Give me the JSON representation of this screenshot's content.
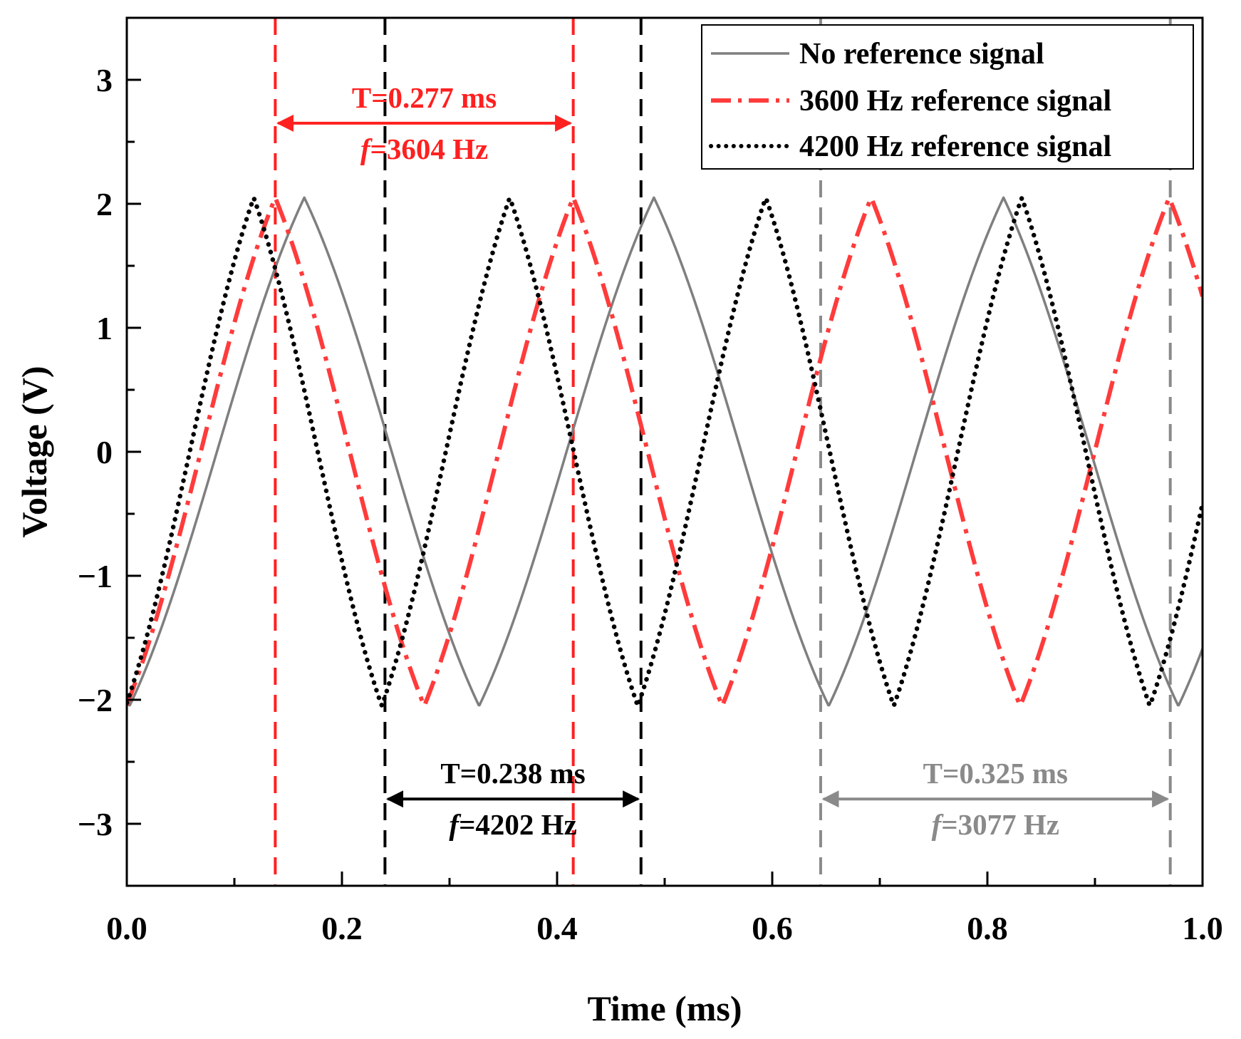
{
  "chart_data": {
    "type": "line",
    "xlabel": "Time (ms)",
    "ylabel": "Voltage (V)",
    "xlim": [
      0.0,
      1.0
    ],
    "ylim": [
      -3.5,
      3.5
    ],
    "xticks": [
      "0.0",
      "0.2",
      "0.4",
      "0.6",
      "0.8",
      "1.0"
    ],
    "yticks": [
      "3",
      "2",
      "1",
      "0",
      "−1",
      "−2",
      "−3"
    ],
    "legend_position": "top-right",
    "series": [
      {
        "name": "No reference signal",
        "color": "#7f7f7f",
        "style": "solid",
        "amplitude": 2.05,
        "period_ms": 0.325,
        "first_peak_ms": 0.165
      },
      {
        "name": "3600 Hz reference signal",
        "color": "#ff3b3b",
        "style": "dash-dot",
        "amplitude": 2.05,
        "period_ms": 0.277,
        "first_peak_ms": 0.138
      },
      {
        "name": "4200 Hz reference signal",
        "color": "#000000",
        "style": "dotted",
        "amplitude": 2.05,
        "period_ms": 0.238,
        "first_peak_ms": 0.118
      }
    ],
    "annotations": [
      {
        "period_label": "T=0.277 ms",
        "freq_prefix": "f",
        "freq_value": "=3604 Hz",
        "x_start": 0.138,
        "x_end": 0.415,
        "y_level": 2.65,
        "color": "#ff2020"
      },
      {
        "period_label": "T=0.238 ms",
        "freq_prefix": "f",
        "freq_value": "=4202 Hz",
        "x_start": 0.24,
        "x_end": 0.478,
        "y_level": -2.8,
        "color": "#000000"
      },
      {
        "period_label": "T=0.325 ms",
        "freq_prefix": "f",
        "freq_value": "=3077 Hz",
        "x_start": 0.645,
        "x_end": 0.97,
        "y_level": -2.8,
        "color": "#8a8a8a"
      }
    ]
  }
}
